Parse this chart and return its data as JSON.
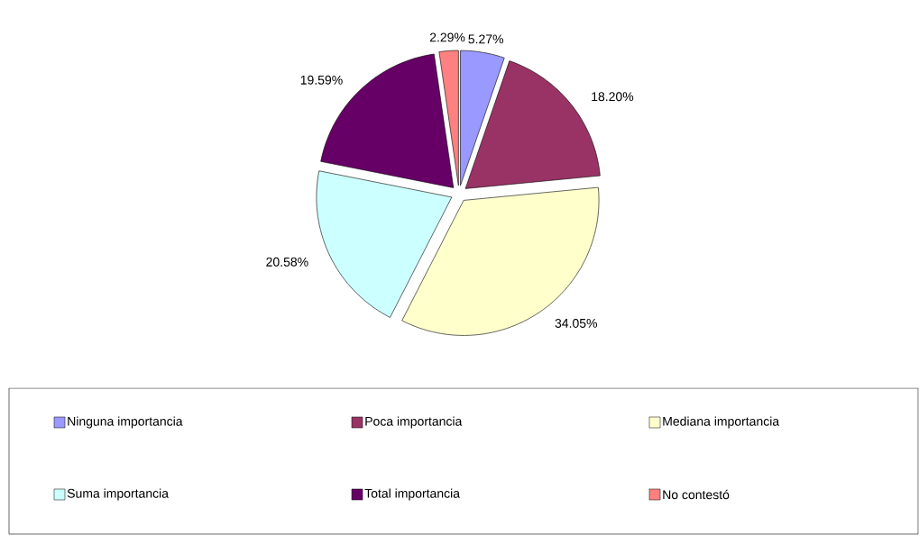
{
  "chart_data": {
    "type": "pie",
    "categories": [
      "Ninguna importancia",
      "Poca importancia",
      "Mediana importancia",
      "Suma importancia",
      "Total importancia",
      "No contestó"
    ],
    "values": [
      5.27,
      18.2,
      34.05,
      20.58,
      19.59,
      2.29
    ],
    "value_labels": [
      "5.27%",
      "18.20%",
      "34.05%",
      "20.58%",
      "19.59%",
      "2.29%"
    ],
    "colors": [
      "#9999ff",
      "#993366",
      "#ffffcc",
      "#ccffff",
      "#660066",
      "#ff8080"
    ],
    "legend": "bottom"
  }
}
